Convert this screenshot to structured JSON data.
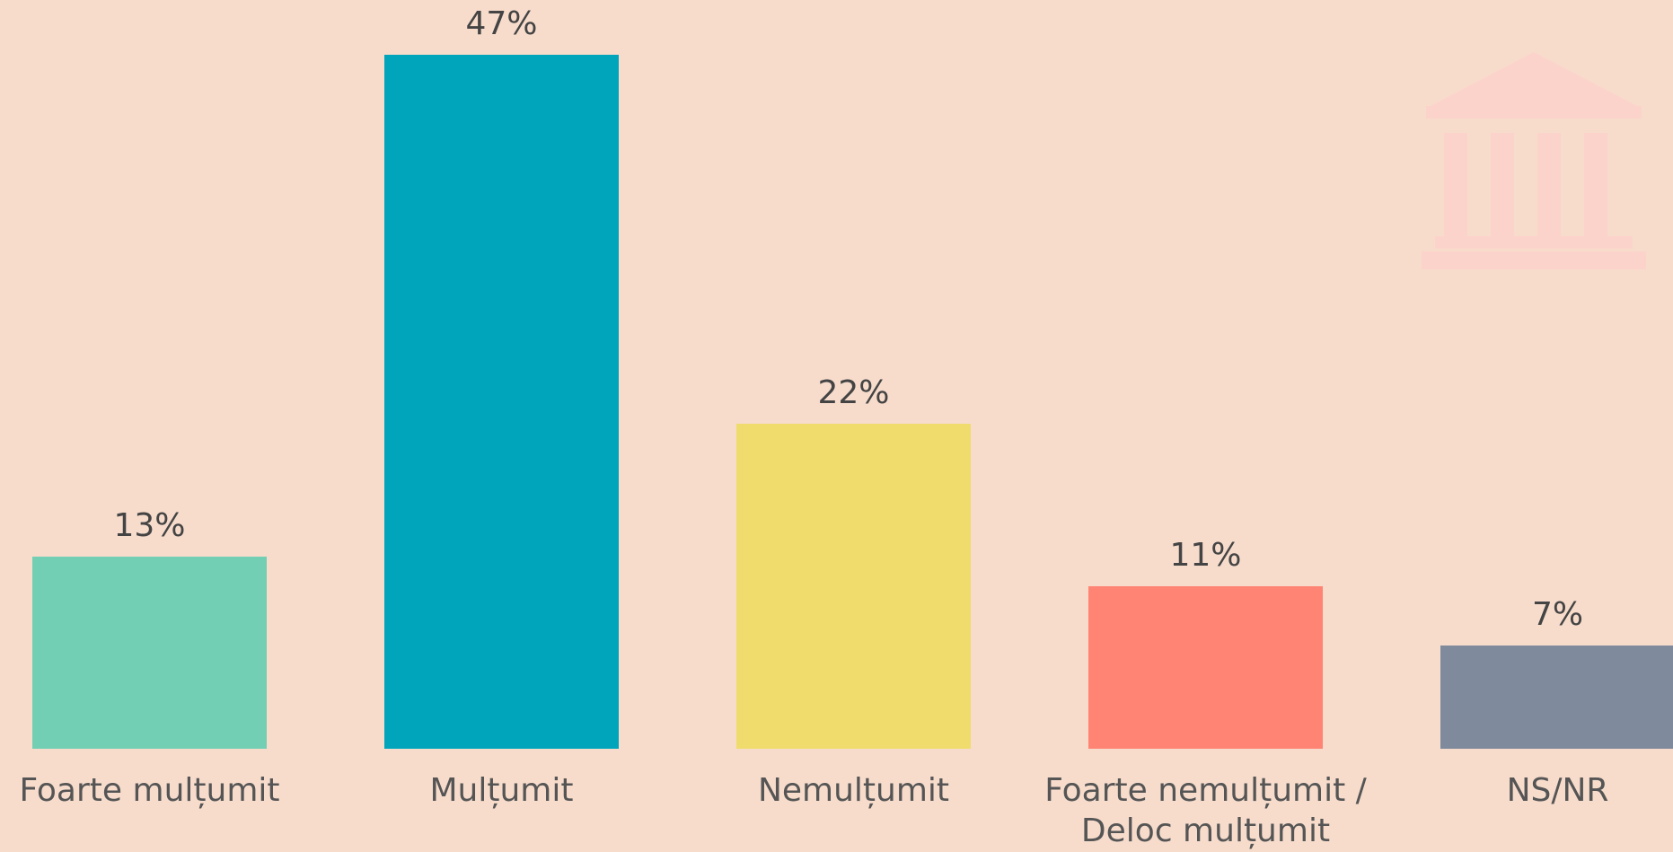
{
  "chart_data": {
    "type": "bar",
    "categories": [
      "Foarte mulțumit",
      "Mulțumit",
      "Nemulțumit",
      "Foarte nemulțumit / Deloc mulțumit",
      "NS/NR"
    ],
    "values": [
      13,
      47,
      22,
      11,
      7
    ],
    "value_labels": [
      "13%",
      "47%",
      "22%",
      "11%",
      "7%"
    ],
    "colors": [
      "#72cfb4",
      "#00a5bb",
      "#f0dc6c",
      "#ff8474",
      "#7f8a9d"
    ]
  }
}
